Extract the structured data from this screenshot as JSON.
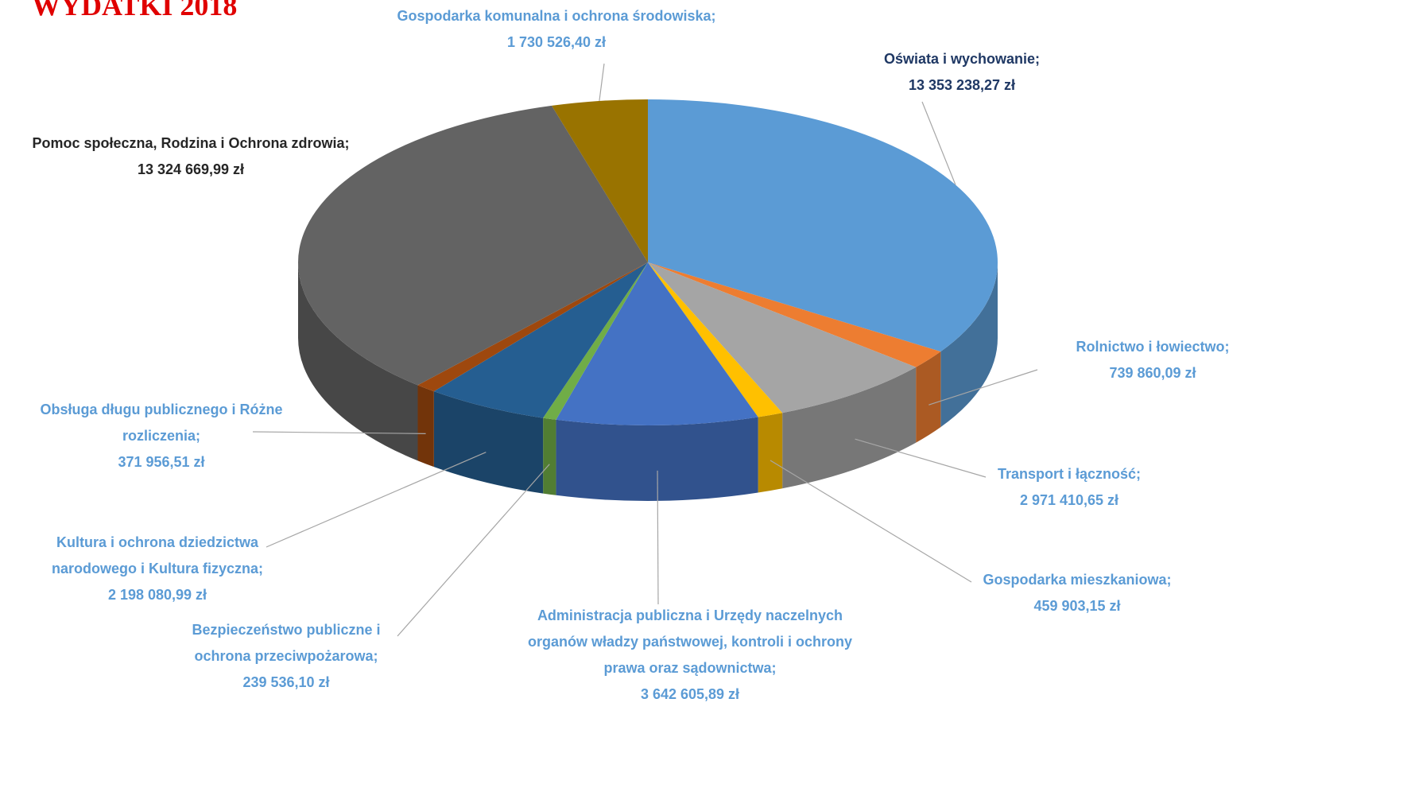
{
  "chart_data": {
    "type": "pie3d",
    "title": "WYDATKI 2018",
    "categories": [
      "Oświata i wychowanie;",
      "Rolnictwo i łowiectwo;",
      "Transport i łączność;",
      "Gospodarka mieszkaniowa;",
      "Administracja publiczna i Urzędy naczelnych organów władzy państwowej, kontroli i ochrony prawa oraz sądownictwa;",
      "Bezpieczeństwo publiczne i ochrona przeciwpożarowa;",
      "Kultura i ochrona dziedzictwa narodowego i Kultura fizyczna;",
      "Obsługa długu publicznego i Różne rozliczenia;",
      "Pomoc społeczna,  Rodzina i Ochrona zdrowia;",
      "Gospodarka komunalna i ochrona środowiska;"
    ],
    "values": [
      13353238.27,
      739860.09,
      2971410.65,
      459903.15,
      3642605.89,
      239536.1,
      2198080.99,
      371956.51,
      13324669.99,
      1730526.4
    ],
    "value_labels": [
      "13 353 238,27 zł",
      "739 860,09 zł",
      "2 971 410,65 zł",
      "459 903,15 zł",
      "3 642 605,89 zł",
      "239 536,10 zł",
      "2 198 080,99 zł",
      "371 956,51 zł",
      "13 324 669,99 zł",
      "1 730 526,40 zł"
    ],
    "colors": [
      "#5b9bd5",
      "#ed7d31",
      "#a5a5a5",
      "#ffc000",
      "#4472c4",
      "#70ad47",
      "#255e91",
      "#9e480e",
      "#636363",
      "#997300"
    ]
  }
}
